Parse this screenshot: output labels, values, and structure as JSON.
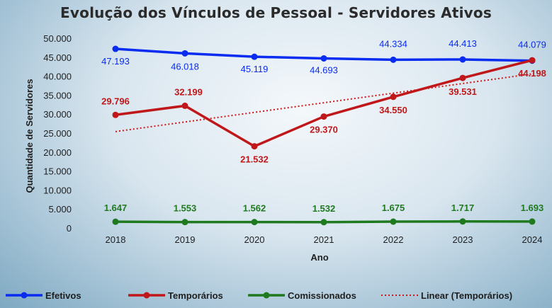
{
  "chart_data": {
    "type": "line",
    "title": "Evolução dos Vínculos de Pessoal - Servidores Ativos",
    "xlabel": "Ano",
    "ylabel": "Quantidade de Servidores",
    "categories": [
      "2018",
      "2019",
      "2020",
      "2021",
      "2022",
      "2023",
      "2024"
    ],
    "ylim": [
      0,
      50000
    ],
    "y_ticks": [
      "0",
      "5.000",
      "10.000",
      "15.000",
      "20.000",
      "25.000",
      "30.000",
      "35.000",
      "40.000",
      "45.000",
      "50.000"
    ],
    "grid": false,
    "legend_position": "bottom",
    "series": [
      {
        "name": "Efetivos",
        "color": "#0a2cf0",
        "values": [
          47193,
          46018,
          45119,
          44693,
          44334,
          44413,
          44079
        ],
        "labels": [
          "47.193",
          "46.018",
          "45.119",
          "44.693",
          "44.334",
          "44.413",
          "44.079"
        ]
      },
      {
        "name": "Temporários",
        "color": "#c0181a",
        "values": [
          29796,
          32199,
          21532,
          29370,
          34550,
          39531,
          44198
        ],
        "labels": [
          "29.796",
          "32.199",
          "21.532",
          "29.370",
          "34.550",
          "39.531",
          "44.198"
        ]
      },
      {
        "name": "Comissionados",
        "color": "#1f7a1f",
        "values": [
          1647,
          1553,
          1562,
          1532,
          1675,
          1717,
          1693
        ],
        "labels": [
          "1.647",
          "1.553",
          "1.562",
          "1.532",
          "1.675",
          "1.717",
          "1.693"
        ]
      }
    ],
    "trendline": {
      "name": "Linear (Temporários)",
      "color": "#d01818",
      "of_series": "Temporários",
      "values": [
        25400,
        40600
      ]
    }
  }
}
